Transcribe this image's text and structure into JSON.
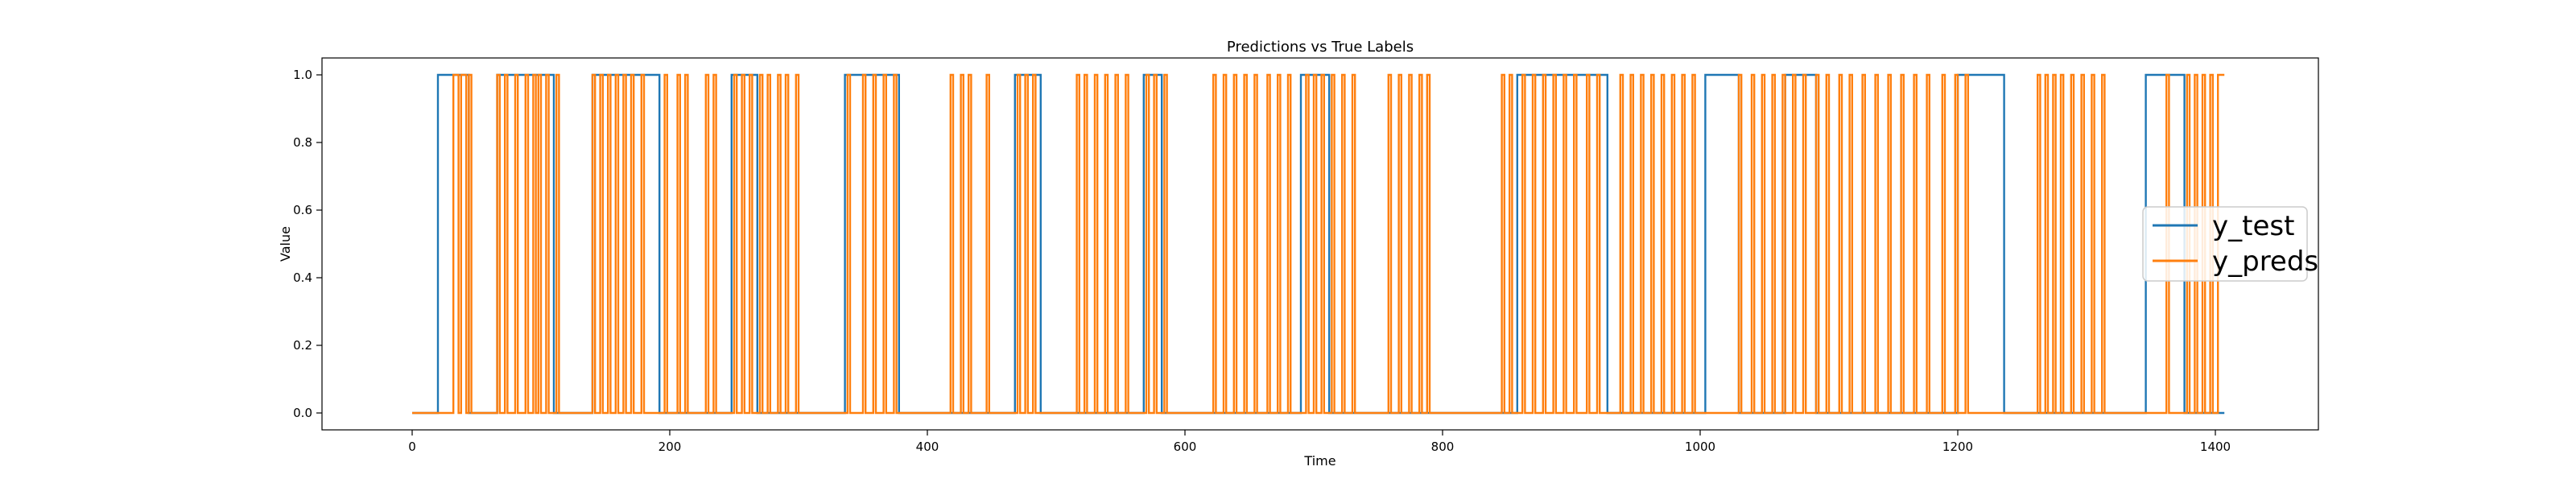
{
  "chart_data": {
    "type": "line",
    "title": "Predictions vs True Labels",
    "xlabel": "Time",
    "ylabel": "Value",
    "xlim": [
      -70,
      1480
    ],
    "ylim": [
      -0.05,
      1.05
    ],
    "xticks": [
      0,
      200,
      400,
      600,
      800,
      1000,
      1200,
      1400
    ],
    "yticks": [
      0.0,
      0.2,
      0.4,
      0.6,
      0.8,
      1.0
    ],
    "grid": false,
    "legend_position": "center-right",
    "series": [
      {
        "name": "y_test",
        "color": "#1f77b4",
        "segments": [
          [
            0,
            0
          ],
          [
            20,
            1
          ],
          [
            44,
            0
          ],
          [
            66,
            1
          ],
          [
            110,
            0
          ],
          [
            140,
            1
          ],
          [
            192,
            0
          ],
          [
            248,
            1
          ],
          [
            268,
            0
          ],
          [
            336,
            1
          ],
          [
            378,
            0
          ],
          [
            468,
            1
          ],
          [
            488,
            0
          ],
          [
            568,
            1
          ],
          [
            582,
            0
          ],
          [
            690,
            1
          ],
          [
            712,
            0
          ],
          [
            858,
            1
          ],
          [
            928,
            0
          ],
          [
            1004,
            1
          ],
          [
            1030,
            0
          ],
          [
            1066,
            1
          ],
          [
            1090,
            0
          ],
          [
            1200,
            1
          ],
          [
            1236,
            0
          ],
          [
            1346,
            1
          ],
          [
            1376,
            0
          ],
          [
            1407,
            0
          ]
        ]
      },
      {
        "name": "y_preds",
        "color": "#ff7f0e",
        "segments": [
          [
            0,
            0
          ],
          [
            32,
            1
          ],
          [
            36,
            0
          ],
          [
            38,
            1
          ],
          [
            42,
            0
          ],
          [
            44,
            1
          ],
          [
            46,
            0
          ],
          [
            66,
            1
          ],
          [
            68,
            0
          ],
          [
            72,
            1
          ],
          [
            74,
            0
          ],
          [
            80,
            1
          ],
          [
            82,
            0
          ],
          [
            88,
            1
          ],
          [
            90,
            0
          ],
          [
            94,
            1
          ],
          [
            96,
            0
          ],
          [
            98,
            1
          ],
          [
            100,
            0
          ],
          [
            104,
            1
          ],
          [
            106,
            0
          ],
          [
            112,
            1
          ],
          [
            114,
            0
          ],
          [
            140,
            1
          ],
          [
            142,
            0
          ],
          [
            146,
            1
          ],
          [
            148,
            0
          ],
          [
            152,
            1
          ],
          [
            154,
            0
          ],
          [
            158,
            1
          ],
          [
            160,
            0
          ],
          [
            164,
            1
          ],
          [
            166,
            0
          ],
          [
            170,
            1
          ],
          [
            172,
            0
          ],
          [
            178,
            1
          ],
          [
            180,
            0
          ],
          [
            196,
            1
          ],
          [
            198,
            0
          ],
          [
            206,
            1
          ],
          [
            208,
            0
          ],
          [
            212,
            1
          ],
          [
            214,
            0
          ],
          [
            228,
            1
          ],
          [
            230,
            0
          ],
          [
            234,
            1
          ],
          [
            236,
            0
          ],
          [
            250,
            1
          ],
          [
            252,
            0
          ],
          [
            256,
            1
          ],
          [
            258,
            0
          ],
          [
            262,
            1
          ],
          [
            264,
            0
          ],
          [
            270,
            1
          ],
          [
            272,
            0
          ],
          [
            276,
            1
          ],
          [
            278,
            0
          ],
          [
            284,
            1
          ],
          [
            286,
            0
          ],
          [
            290,
            1
          ],
          [
            292,
            0
          ],
          [
            298,
            1
          ],
          [
            300,
            0
          ],
          [
            338,
            1
          ],
          [
            340,
            0
          ],
          [
            350,
            1
          ],
          [
            352,
            0
          ],
          [
            358,
            1
          ],
          [
            360,
            0
          ],
          [
            366,
            1
          ],
          [
            368,
            0
          ],
          [
            374,
            1
          ],
          [
            376,
            0
          ],
          [
            418,
            1
          ],
          [
            420,
            0
          ],
          [
            426,
            1
          ],
          [
            428,
            0
          ],
          [
            432,
            1
          ],
          [
            434,
            0
          ],
          [
            446,
            1
          ],
          [
            448,
            0
          ],
          [
            470,
            1
          ],
          [
            472,
            0
          ],
          [
            476,
            1
          ],
          [
            478,
            0
          ],
          [
            482,
            1
          ],
          [
            484,
            0
          ],
          [
            516,
            1
          ],
          [
            518,
            0
          ],
          [
            522,
            1
          ],
          [
            524,
            0
          ],
          [
            530,
            1
          ],
          [
            532,
            0
          ],
          [
            538,
            1
          ],
          [
            540,
            0
          ],
          [
            546,
            1
          ],
          [
            548,
            0
          ],
          [
            554,
            1
          ],
          [
            556,
            0
          ],
          [
            570,
            1
          ],
          [
            572,
            0
          ],
          [
            576,
            1
          ],
          [
            578,
            0
          ],
          [
            584,
            1
          ],
          [
            586,
            0
          ],
          [
            622,
            1
          ],
          [
            624,
            0
          ],
          [
            630,
            1
          ],
          [
            632,
            0
          ],
          [
            638,
            1
          ],
          [
            640,
            0
          ],
          [
            646,
            1
          ],
          [
            648,
            0
          ],
          [
            654,
            1
          ],
          [
            656,
            0
          ],
          [
            664,
            1
          ],
          [
            666,
            0
          ],
          [
            672,
            1
          ],
          [
            674,
            0
          ],
          [
            680,
            1
          ],
          [
            682,
            0
          ],
          [
            694,
            1
          ],
          [
            696,
            0
          ],
          [
            700,
            1
          ],
          [
            702,
            0
          ],
          [
            706,
            1
          ],
          [
            708,
            0
          ],
          [
            714,
            1
          ],
          [
            716,
            0
          ],
          [
            722,
            1
          ],
          [
            724,
            0
          ],
          [
            730,
            1
          ],
          [
            732,
            0
          ],
          [
            758,
            1
          ],
          [
            760,
            0
          ],
          [
            766,
            1
          ],
          [
            768,
            0
          ],
          [
            774,
            1
          ],
          [
            776,
            0
          ],
          [
            782,
            1
          ],
          [
            784,
            0
          ],
          [
            788,
            1
          ],
          [
            790,
            0
          ],
          [
            846,
            1
          ],
          [
            848,
            0
          ],
          [
            852,
            1
          ],
          [
            854,
            0
          ],
          [
            862,
            1
          ],
          [
            864,
            0
          ],
          [
            870,
            1
          ],
          [
            872,
            0
          ],
          [
            878,
            1
          ],
          [
            880,
            0
          ],
          [
            886,
            1
          ],
          [
            888,
            0
          ],
          [
            894,
            1
          ],
          [
            896,
            0
          ],
          [
            902,
            1
          ],
          [
            904,
            0
          ],
          [
            912,
            1
          ],
          [
            914,
            0
          ],
          [
            920,
            1
          ],
          [
            922,
            0
          ],
          [
            938,
            1
          ],
          [
            940,
            0
          ],
          [
            946,
            1
          ],
          [
            948,
            0
          ],
          [
            954,
            1
          ],
          [
            956,
            0
          ],
          [
            962,
            1
          ],
          [
            964,
            0
          ],
          [
            970,
            1
          ],
          [
            972,
            0
          ],
          [
            978,
            1
          ],
          [
            980,
            0
          ],
          [
            986,
            1
          ],
          [
            988,
            0
          ],
          [
            994,
            1
          ],
          [
            996,
            0
          ],
          [
            1030,
            1
          ],
          [
            1032,
            0
          ],
          [
            1040,
            1
          ],
          [
            1042,
            0
          ],
          [
            1048,
            1
          ],
          [
            1050,
            0
          ],
          [
            1056,
            1
          ],
          [
            1058,
            0
          ],
          [
            1064,
            1
          ],
          [
            1066,
            0
          ],
          [
            1072,
            1
          ],
          [
            1074,
            0
          ],
          [
            1080,
            1
          ],
          [
            1082,
            0
          ],
          [
            1090,
            1
          ],
          [
            1092,
            0
          ],
          [
            1098,
            1
          ],
          [
            1100,
            0
          ],
          [
            1108,
            1
          ],
          [
            1110,
            0
          ],
          [
            1116,
            1
          ],
          [
            1118,
            0
          ],
          [
            1126,
            1
          ],
          [
            1128,
            0
          ],
          [
            1136,
            1
          ],
          [
            1138,
            0
          ],
          [
            1146,
            1
          ],
          [
            1148,
            0
          ],
          [
            1156,
            1
          ],
          [
            1158,
            0
          ],
          [
            1166,
            1
          ],
          [
            1168,
            0
          ],
          [
            1176,
            1
          ],
          [
            1178,
            0
          ],
          [
            1188,
            1
          ],
          [
            1190,
            0
          ],
          [
            1198,
            1
          ],
          [
            1200,
            0
          ],
          [
            1206,
            1
          ],
          [
            1208,
            0
          ],
          [
            1262,
            1
          ],
          [
            1264,
            0
          ],
          [
            1268,
            1
          ],
          [
            1270,
            0
          ],
          [
            1274,
            1
          ],
          [
            1276,
            0
          ],
          [
            1280,
            1
          ],
          [
            1282,
            0
          ],
          [
            1288,
            1
          ],
          [
            1290,
            0
          ],
          [
            1296,
            1
          ],
          [
            1298,
            0
          ],
          [
            1304,
            1
          ],
          [
            1306,
            0
          ],
          [
            1312,
            1
          ],
          [
            1314,
            0
          ],
          [
            1362,
            1
          ],
          [
            1364,
            0
          ],
          [
            1378,
            1
          ],
          [
            1380,
            0
          ],
          [
            1384,
            1
          ],
          [
            1386,
            0
          ],
          [
            1390,
            1
          ],
          [
            1392,
            0
          ],
          [
            1396,
            1
          ],
          [
            1398,
            0
          ],
          [
            1402,
            1
          ],
          [
            1407,
            1
          ]
        ]
      }
    ]
  }
}
